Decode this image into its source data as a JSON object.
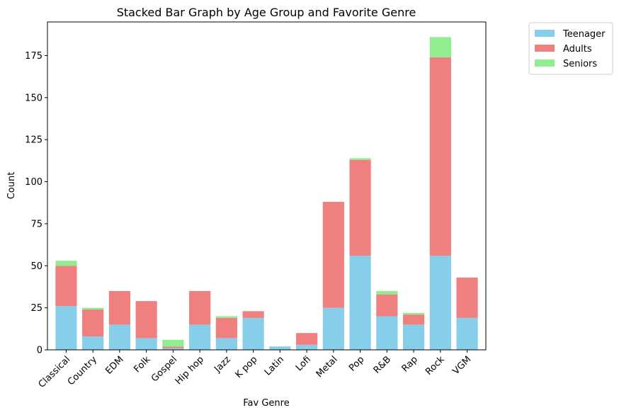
{
  "chart_data": {
    "type": "bar",
    "stacked": true,
    "title": "Stacked Bar Graph by Age Group and Favorite Genre",
    "xlabel": "Fav Genre",
    "ylabel": "Count",
    "ylim": [
      0,
      195
    ],
    "yticks": [
      0,
      25,
      50,
      75,
      100,
      125,
      150,
      175
    ],
    "categories": [
      "Classical",
      "Country",
      "EDM",
      "Folk",
      "Gospel",
      "Hip hop",
      "Jazz",
      "K pop",
      "Latin",
      "Lofi",
      "Metal",
      "Pop",
      "R&B",
      "Rap",
      "Rock",
      "VGM"
    ],
    "series": [
      {
        "name": "Teenager",
        "color": "#87ceeb",
        "values": [
          26,
          8,
          15,
          7,
          1,
          15,
          7,
          19,
          2,
          3,
          25,
          56,
          20,
          15,
          56,
          19
        ]
      },
      {
        "name": "Adults",
        "color": "#f08080",
        "values": [
          24,
          16,
          20,
          22,
          1,
          20,
          12,
          4,
          0,
          7,
          63,
          57,
          13,
          6,
          118,
          24
        ]
      },
      {
        "name": "Seniors",
        "color": "#90ee90",
        "values": [
          3,
          1,
          0,
          0,
          4,
          0,
          1,
          0,
          0,
          0,
          0,
          1,
          2,
          1,
          12,
          0
        ]
      }
    ],
    "legend_position": "outside-top-right",
    "grid": false
  }
}
